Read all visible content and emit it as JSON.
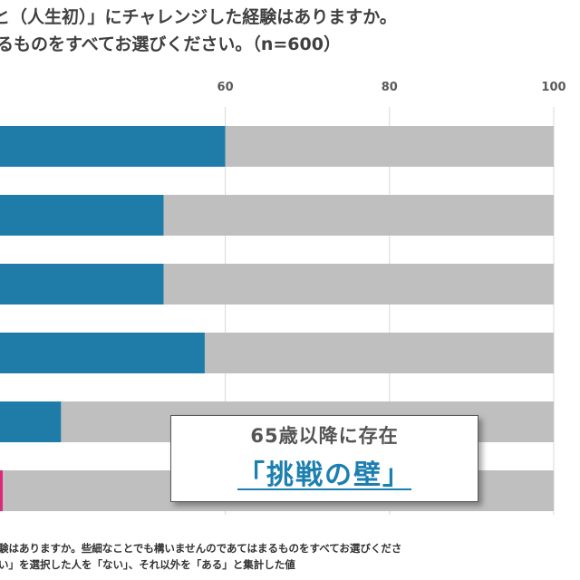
{
  "title": {
    "line1": "と（人生初）」にチャレンジした経験はありますか。",
    "line2": "るものをすべてお選びください。（n=600）"
  },
  "chart_data": {
    "type": "bar",
    "orientation": "horizontal",
    "stacked_to_100": true,
    "xlim": [
      0,
      100
    ],
    "ticks": [
      60,
      80,
      100
    ],
    "grid": true,
    "categories": [
      "",
      "",
      "",
      "",
      "",
      ""
    ],
    "series": [
      {
        "color": "#1f7ca8",
        "values": [
          60,
          52.5,
          52.5,
          57.5,
          40,
          1
        ]
      },
      {
        "color": "#bfbfbf",
        "values": [
          40,
          47.5,
          47.5,
          42.5,
          60,
          99
        ]
      }
    ],
    "highlight_color": "#e0287a"
  },
  "callout": {
    "subtitle": "65歳以降に存在",
    "headline": "「挑戦の壁」"
  },
  "footnote": {
    "line1": "験はありますか。些細なことでも構いませんのであてはまるものをすべてお選びくださ",
    "line2": "い」を選択した人を「ない」、それ以外を「ある」と集計した値"
  }
}
